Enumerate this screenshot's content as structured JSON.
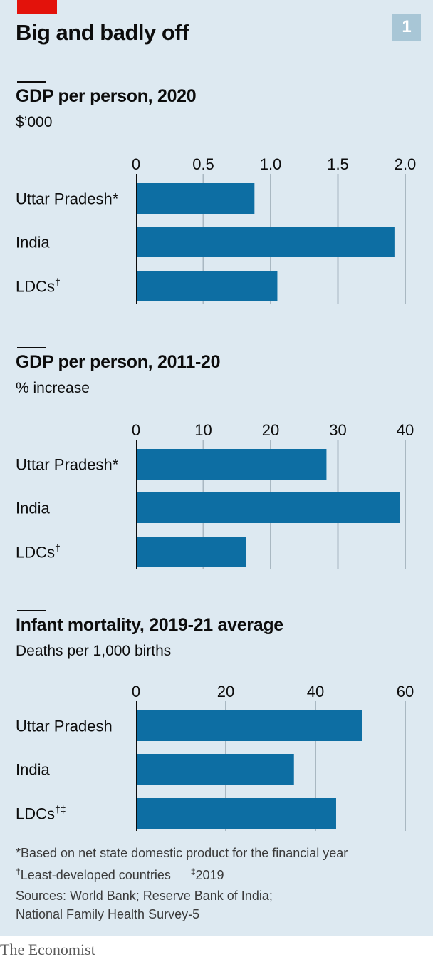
{
  "header": {
    "title": "Big and badly off",
    "chart_number": "1",
    "accent_color": "#e3120b"
  },
  "bar_color": "#0d6ea3",
  "grid_color": "#a9b8c2",
  "chart_data": [
    {
      "type": "bar",
      "orientation": "horizontal",
      "title": "GDP per person, 2020",
      "subtitle": "$’000",
      "categories": [
        "Uttar Pradesh",
        "India",
        "LDCs"
      ],
      "category_marks": [
        "*",
        "",
        "†"
      ],
      "values": [
        0.88,
        1.92,
        1.05
      ],
      "xlim": [
        0,
        2.0
      ],
      "ticks": [
        0,
        0.5,
        1.0,
        1.5,
        2.0
      ],
      "tick_labels": [
        "0",
        "0.5",
        "1.0",
        "1.5",
        "2.0"
      ],
      "grid": true
    },
    {
      "type": "bar",
      "orientation": "horizontal",
      "title": "GDP per person, 2011-20",
      "subtitle": "% increase",
      "categories": [
        "Uttar Pradesh",
        "India",
        "LDCs"
      ],
      "category_marks": [
        "*",
        "",
        "†"
      ],
      "values": [
        28.3,
        39.2,
        16.3
      ],
      "xlim": [
        0,
        40
      ],
      "ticks": [
        0,
        10,
        20,
        30,
        40
      ],
      "tick_labels": [
        "0",
        "10",
        "20",
        "30",
        "40"
      ],
      "grid": true
    },
    {
      "type": "bar",
      "orientation": "horizontal",
      "title": "Infant mortality, 2019-21 average",
      "subtitle": "Deaths per 1,000 births",
      "categories": [
        "Uttar Pradesh",
        "India",
        "LDCs"
      ],
      "category_marks": [
        "",
        "",
        "†‡"
      ],
      "values": [
        50.4,
        35.2,
        44.6
      ],
      "xlim": [
        0,
        60
      ],
      "ticks": [
        0,
        20,
        40,
        60
      ],
      "tick_labels": [
        "0",
        "20",
        "40",
        "60"
      ],
      "grid": true
    }
  ],
  "footnotes": {
    "star": "*Based on net state domestic product for the financial year",
    "dagger_mark": "†",
    "dagger_text": "Least-developed countries",
    "ddagger_mark": "‡",
    "ddagger_text": "2019"
  },
  "sources": {
    "line1": "Sources: World Bank; Reserve Bank of India;",
    "line2": "National Family Health Survey-5"
  },
  "brand": "The Economist"
}
